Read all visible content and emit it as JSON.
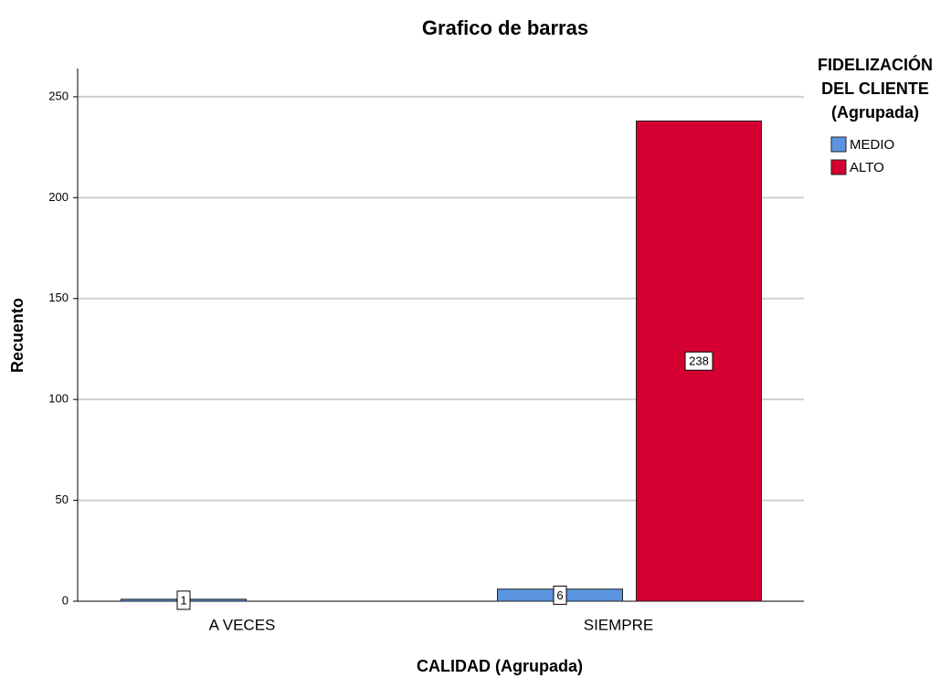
{
  "chart_data": {
    "type": "bar",
    "title": "Grafico de barras",
    "x_label": "CALIDAD (Agrupada)",
    "y_label": "Recuento",
    "categories": [
      "A VECES",
      "SIEMPRE"
    ],
    "series": [
      {
        "name": "MEDIO",
        "color": "#5b95e0",
        "values": [
          1,
          6
        ]
      },
      {
        "name": "ALTO",
        "color": "#d50032",
        "values": [
          null,
          238
        ]
      }
    ],
    "legend_title": [
      "FIDELIZACIÓN",
      "DEL CLIENTE",
      "(Agrupada)"
    ],
    "ylim": [
      0,
      264
    ],
    "yticks": [
      0,
      50,
      100,
      150,
      200,
      250
    ],
    "grid": true,
    "legend": "right"
  }
}
